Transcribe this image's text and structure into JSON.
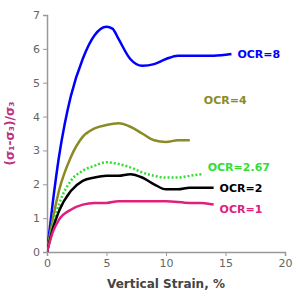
{
  "chart_data": {
    "type": "line",
    "x_label": "Vertical Strain, %",
    "y_label": "(σ₁-σ₃)/σ₃",
    "xlim": [
      0,
      20
    ],
    "xticks": [
      0,
      5,
      10,
      15,
      20
    ],
    "ylim": [
      0,
      7
    ],
    "yticks": [
      0,
      1,
      2,
      3,
      4,
      5,
      6,
      7
    ],
    "grid": false,
    "series": [
      {
        "name": "OCR=8",
        "color": "#0000ff",
        "line_style": "solid",
        "x": [
          0,
          0.5,
          1,
          1.5,
          2,
          3,
          4,
          5,
          5.5,
          6,
          7,
          8,
          9,
          10,
          11,
          12,
          14,
          15.5
        ],
        "values": [
          0,
          1.5,
          2.8,
          3.8,
          4.6,
          5.7,
          6.4,
          6.65,
          6.6,
          6.3,
          5.7,
          5.5,
          5.55,
          5.7,
          5.8,
          5.8,
          5.8,
          5.85
        ]
      },
      {
        "name": "OCR=4",
        "color": "#8b8b26",
        "line_style": "solid",
        "x": [
          0,
          0.5,
          1,
          2,
          3,
          4,
          5,
          6,
          7,
          8,
          9,
          10,
          11,
          12
        ],
        "values": [
          0,
          1.0,
          1.8,
          2.8,
          3.4,
          3.65,
          3.75,
          3.8,
          3.7,
          3.5,
          3.3,
          3.25,
          3.3,
          3.3
        ]
      },
      {
        "name": "OCR=2.67",
        "color": "#33dd33",
        "line_style": "dotted",
        "x": [
          0,
          0.5,
          1,
          2,
          3,
          4,
          5,
          6,
          7,
          8,
          9,
          10,
          11,
          12,
          13
        ],
        "values": [
          0,
          0.8,
          1.4,
          2.1,
          2.4,
          2.55,
          2.65,
          2.6,
          2.5,
          2.35,
          2.25,
          2.2,
          2.2,
          2.25,
          2.3
        ]
      },
      {
        "name": "OCR=2",
        "color": "#000000",
        "line_style": "solid",
        "x": [
          0,
          0.5,
          1,
          2,
          3,
          4,
          5,
          6,
          7,
          8,
          9,
          10,
          11,
          12,
          13,
          14
        ],
        "values": [
          0,
          0.7,
          1.2,
          1.8,
          2.1,
          2.2,
          2.25,
          2.25,
          2.3,
          2.2,
          2.0,
          1.85,
          1.85,
          1.9,
          1.9,
          1.9
        ]
      },
      {
        "name": "OCR=1",
        "color": "#e0207f",
        "line_style": "solid",
        "x": [
          0,
          0.5,
          1,
          2,
          3,
          4,
          5,
          6,
          8,
          10,
          12,
          13,
          14
        ],
        "values": [
          0,
          0.6,
          0.95,
          1.25,
          1.4,
          1.45,
          1.45,
          1.5,
          1.5,
          1.5,
          1.45,
          1.45,
          1.4
        ]
      }
    ]
  }
}
